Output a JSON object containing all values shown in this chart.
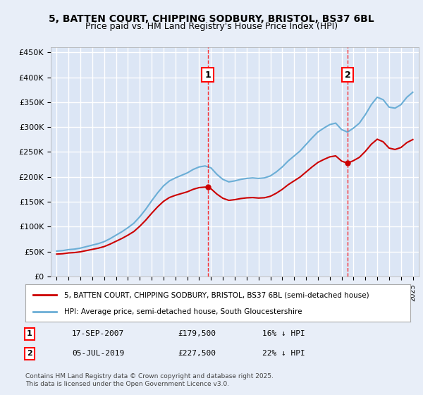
{
  "title_line1": "5, BATTEN COURT, CHIPPING SODBURY, BRISTOL, BS37 6BL",
  "title_line2": "Price paid vs. HM Land Registry's House Price Index (HPI)",
  "ylabel": "",
  "background_color": "#e8eef8",
  "plot_bg_color": "#dce6f5",
  "grid_color": "#ffffff",
  "sale1_date_x": 2007.72,
  "sale1_price": 179500,
  "sale1_label": "1",
  "sale1_text": "17-SEP-2007",
  "sale1_price_text": "£179,500",
  "sale1_hpi_text": "16% ↓ HPI",
  "sale2_date_x": 2019.51,
  "sale2_price": 227500,
  "sale2_label": "2",
  "sale2_text": "05-JUL-2019",
  "sale2_price_text": "£227,500",
  "sale2_hpi_text": "22% ↓ HPI",
  "legend_line1": "5, BATTEN COURT, CHIPPING SODBURY, BRISTOL, BS37 6BL (semi-detached house)",
  "legend_line2": "HPI: Average price, semi-detached house, South Gloucestershire",
  "footer": "Contains HM Land Registry data © Crown copyright and database right 2025.\nThis data is licensed under the Open Government Licence v3.0.",
  "hpi_color": "#6baed6",
  "sale_color": "#cc0000",
  "marker_color": "#cc0000",
  "xmin": 1994.5,
  "xmax": 2025.5,
  "ymin": 0,
  "ymax": 460000
}
